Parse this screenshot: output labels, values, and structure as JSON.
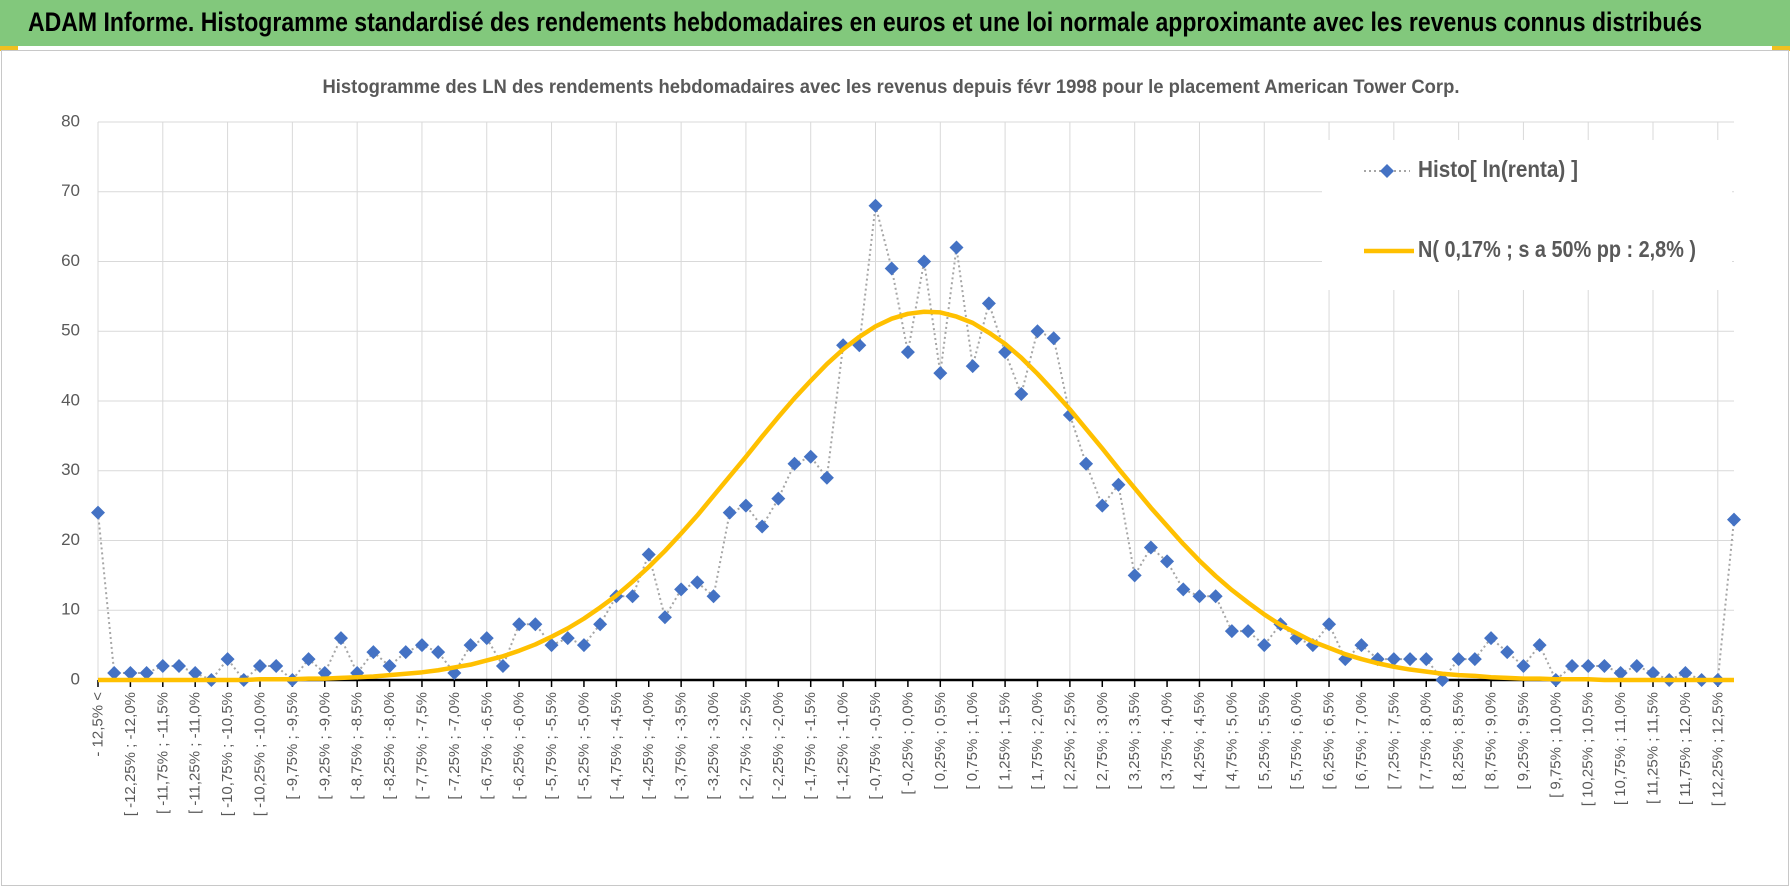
{
  "header": {
    "title": "ADAM Informe. Histogramme standardisé des rendements hebdomadaires en euros et une loi normale approximante avec les revenus connus distribués"
  },
  "chart_data": {
    "type": "line",
    "title": "Histogramme  des LN des rendements hebdomadaires avec les revenus depuis févr 1998 pour le placement American Tower Corp.",
    "categories": [
      "- 12,5% <",
      null,
      "[ -12,25% ; -12,0%",
      null,
      "[ -11,75% ; -11,5%",
      null,
      "[ -11,25% ; -11,0%",
      null,
      "[ -10,75% ; -10,5%",
      null,
      "[ -10,25% ; -10,0%",
      null,
      "[ -9,75% ; -9,5%",
      null,
      "[ -9,25% ; -9,0%",
      null,
      "[ -8,75% ; -8,5%",
      null,
      "[ -8,25% ; -8,0%",
      null,
      "[ -7,75% ; -7,5%",
      null,
      "[ -7,25% ; -7,0%",
      null,
      "[ -6,75% ; -6,5%",
      null,
      "[ -6,25% ; -6,0%",
      null,
      "[ -5,75% ; -5,5%",
      null,
      "[ -5,25% ; -5,0%",
      null,
      "[ -4,75% ; -4,5%",
      null,
      "[ -4,25% ; -4,0%",
      null,
      "[ -3,75% ; -3,5%",
      null,
      "[ -3,25% ; -3,0%",
      null,
      "[ -2,75% ; -2,5%",
      null,
      "[ -2,25% ; -2,0%",
      null,
      "[ -1,75% ; -1,5%",
      null,
      "[ -1,25% ; -1,0%",
      null,
      "[ -0,75% ; -0,5%",
      null,
      "[ -0,25% ; 0,0%",
      null,
      "[ 0,25% ; 0,5%",
      null,
      "[ 0,75% ; 1,0%",
      null,
      "[ 1,25% ; 1,5%",
      null,
      "[ 1,75% ; 2,0%",
      null,
      "[ 2,25% ; 2,5%",
      null,
      "[ 2,75% ; 3,0%",
      null,
      "[ 3,25% ; 3,5%",
      null,
      "[ 3,75% ; 4,0%",
      null,
      "[ 4,25% ; 4,5%",
      null,
      "[ 4,75% ; 5,0%",
      null,
      "[ 5,25% ; 5,5%",
      null,
      "[ 5,75% ; 6,0%",
      null,
      "[ 6,25% ; 6,5%",
      null,
      "[ 6,75% ; 7,0%",
      null,
      "[ 7,25% ; 7,5%",
      null,
      "[ 7,75% ; 8,0%",
      null,
      "[ 8,25% ; 8,5%",
      null,
      "[ 8,75% ; 9,0%",
      null,
      "[ 9,25% ; 9,5%",
      null,
      "[ 9,75% ; 10,0%",
      null,
      "[ 10,25% ; 10,5%",
      null,
      "[ 10,75% ; 11,0%",
      null,
      "[ 11,25% ; 11,5%",
      null,
      "[ 11,75% ; 12,0%",
      null,
      "[ 12,25% ; 12,5%",
      null
    ],
    "series": [
      {
        "name": "Histo[ ln(renta) ]",
        "color": "#4472c4",
        "marker": "diamond",
        "values": [
          24,
          1,
          1,
          1,
          2,
          2,
          1,
          0,
          3,
          0,
          2,
          2,
          0,
          3,
          1,
          6,
          1,
          4,
          2,
          4,
          5,
          4,
          1,
          5,
          6,
          2,
          8,
          8,
          5,
          6,
          5,
          8,
          12,
          12,
          18,
          9,
          13,
          14,
          12,
          24,
          25,
          22,
          26,
          31,
          32,
          29,
          48,
          48,
          68,
          59,
          47,
          60,
          44,
          62,
          45,
          54,
          47,
          41,
          50,
          49,
          38,
          31,
          25,
          28,
          15,
          19,
          17,
          13,
          12,
          12,
          7,
          7,
          5,
          8,
          6,
          5,
          8,
          3,
          5,
          3,
          3,
          3,
          3,
          0,
          3,
          3,
          6,
          4,
          2,
          5,
          0,
          2,
          2,
          2,
          1,
          2,
          1,
          0,
          1,
          0,
          0,
          23
        ]
      },
      {
        "name": "N( 0,17% ; s a 50% pp : 2,8% )",
        "color": "#ffc000",
        "values": [
          0,
          0,
          0,
          0,
          0,
          0,
          0,
          0,
          0,
          0,
          0.1,
          0.1,
          0.1,
          0.2,
          0.2,
          0.3,
          0.4,
          0.5,
          0.7,
          0.9,
          1.1,
          1.4,
          1.8,
          2.2,
          2.8,
          3.4,
          4.2,
          5.1,
          6.2,
          7.4,
          8.8,
          10.4,
          12.1,
          14.1,
          16.2,
          18.5,
          21.0,
          23.6,
          26.4,
          29.2,
          32.0,
          34.9,
          37.7,
          40.4,
          42.9,
          45.3,
          47.4,
          49.2,
          50.7,
          51.8,
          52.5,
          52.8,
          52.7,
          52.1,
          51.2,
          49.8,
          48.2,
          46.2,
          43.9,
          41.4,
          38.8,
          36.0,
          33.2,
          30.3,
          27.5,
          24.7,
          22.1,
          19.5,
          17.1,
          14.9,
          12.9,
          11.1,
          9.4,
          7.9,
          6.7,
          5.5,
          4.6,
          3.7,
          3.0,
          2.4,
          1.9,
          1.5,
          1.2,
          0.9,
          0.7,
          0.6,
          0.4,
          0.3,
          0.2,
          0.2,
          0.1,
          0.1,
          0.1,
          0,
          0,
          0,
          0,
          0,
          0,
          0,
          0,
          0
        ]
      }
    ],
    "ylim": [
      0,
      80
    ],
    "yticks": [
      0,
      10,
      20,
      30,
      40,
      50,
      60,
      70,
      80
    ],
    "grid": true,
    "legend": "upper right"
  }
}
